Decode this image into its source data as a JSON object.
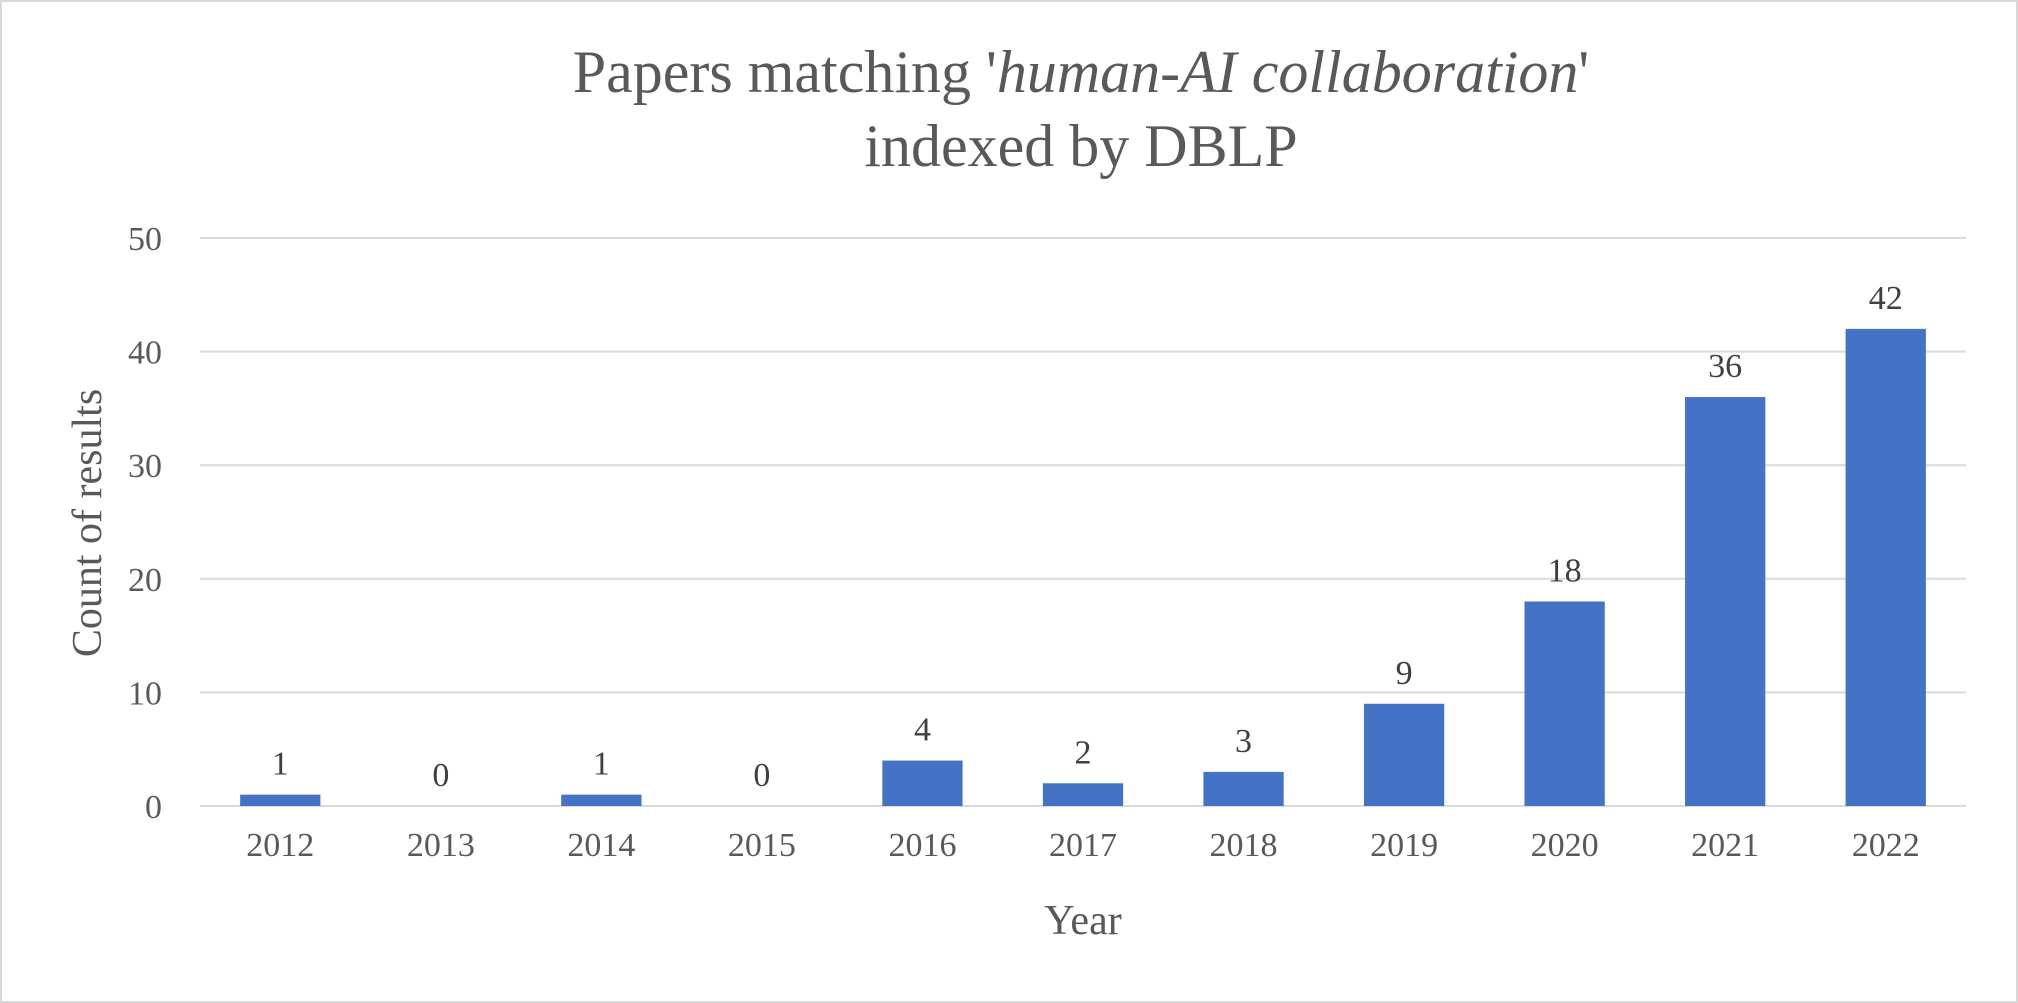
{
  "chart_data": {
    "type": "bar",
    "title_prefix": "Papers matching '",
    "title_italic": "human-AI collaboration",
    "title_suffix": "'",
    "title_line2": "indexed by DBLP",
    "xlabel": "Year",
    "ylabel": "Count of results",
    "categories": [
      "2012",
      "2013",
      "2014",
      "2015",
      "2016",
      "2017",
      "2018",
      "2019",
      "2020",
      "2021",
      "2022"
    ],
    "values": [
      1,
      0,
      1,
      0,
      4,
      2,
      3,
      9,
      18,
      36,
      42
    ],
    "data_labels": [
      "1",
      "0",
      "1",
      "0",
      "4",
      "2",
      "3",
      "9",
      "18",
      "36",
      "42"
    ],
    "ylim": [
      0,
      50
    ],
    "y_ticks": [
      0,
      10,
      20,
      30,
      40,
      50
    ],
    "y_tick_labels": [
      "0",
      "10",
      "20",
      "30",
      "40",
      "50"
    ],
    "grid": true,
    "legend": "none",
    "colors": {
      "bar": "#4472C4",
      "grid": "#d9d9d9",
      "text": "#595959",
      "data_label": "#404040"
    }
  }
}
